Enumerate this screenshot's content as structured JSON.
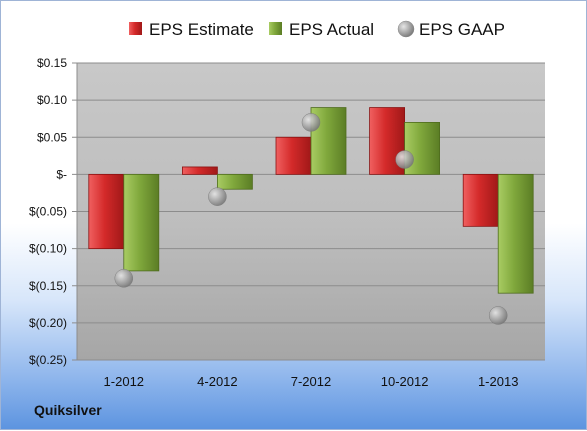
{
  "company": "Quiksilver",
  "chart_data": {
    "type": "bar",
    "categories": [
      "1-2012",
      "4-2012",
      "7-2012",
      "10-2012",
      "1-2013"
    ],
    "series": [
      {
        "name": "EPS Estimate",
        "kind": "bar",
        "color": "#d42a2a",
        "values": [
          -0.1,
          0.01,
          0.05,
          0.09,
          -0.07
        ]
      },
      {
        "name": "EPS Actual",
        "kind": "bar",
        "color": "#80a83c",
        "values": [
          -0.13,
          -0.02,
          0.09,
          0.07,
          -0.16
        ]
      },
      {
        "name": "EPS GAAP",
        "kind": "marker",
        "color": "#9a9a9a",
        "values": [
          -0.14,
          -0.03,
          0.07,
          0.02,
          -0.19
        ]
      }
    ],
    "yticks": [
      0.15,
      0.1,
      0.05,
      0,
      -0.05,
      -0.1,
      -0.15,
      -0.2,
      -0.25
    ],
    "ytick_labels": [
      "$0.15",
      "$0.10",
      "$0.05",
      "$-",
      "$(0.05)",
      "$(0.10)",
      "$(0.15)",
      "$(0.20)",
      "$(0.25)"
    ],
    "ylim": [
      -0.25,
      0.15
    ],
    "grid": true,
    "legend_position": "top"
  }
}
